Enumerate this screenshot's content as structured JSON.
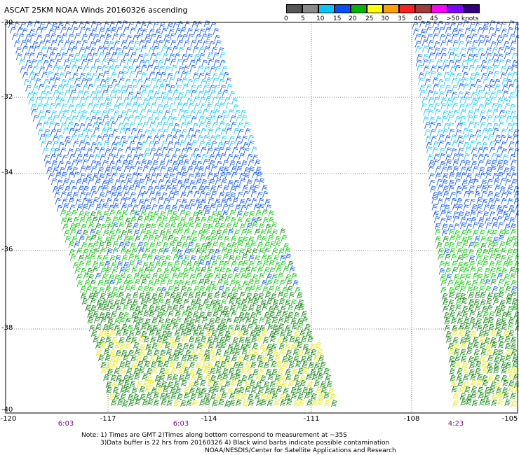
{
  "title": "ASCAT 25KM NOAA Winds 20160326 ascending",
  "legend": {
    "levels": [
      "0",
      "5",
      "10",
      "15",
      "20",
      "25",
      "30",
      "35",
      "40",
      "45",
      ">50 knots"
    ],
    "colors": [
      "#555555",
      "#8a8a8a",
      "#00c8ff",
      "#0050ff",
      "#00b400",
      "#ffff00",
      "#ffa000",
      "#ff2020",
      "#a03c3c",
      "#ff00ff",
      "#8000ff",
      "#300080"
    ]
  },
  "axes": {
    "lat_labels": [
      "-30",
      "-32",
      "-34",
      "-36",
      "-38",
      "-40"
    ],
    "lon_labels": [
      "-120",
      "-117",
      "-114",
      "-111",
      "-108",
      "-105"
    ]
  },
  "pass_times": [
    "6:03",
    "6:03",
    "4:23"
  ],
  "notes": [
    "Note: 1) Times are GMT 2)Times along bottom correspond to measurement at ~35S",
    "3)Data buffer is 22 hrs from 20160326 4) Black wind barbs indicate possible contamination",
    "NOAA/NESDIS/Center for Satellite Applications and Research"
  ],
  "colors": {
    "time_label": "#7a0a7a",
    "gridline": "#000000"
  }
}
